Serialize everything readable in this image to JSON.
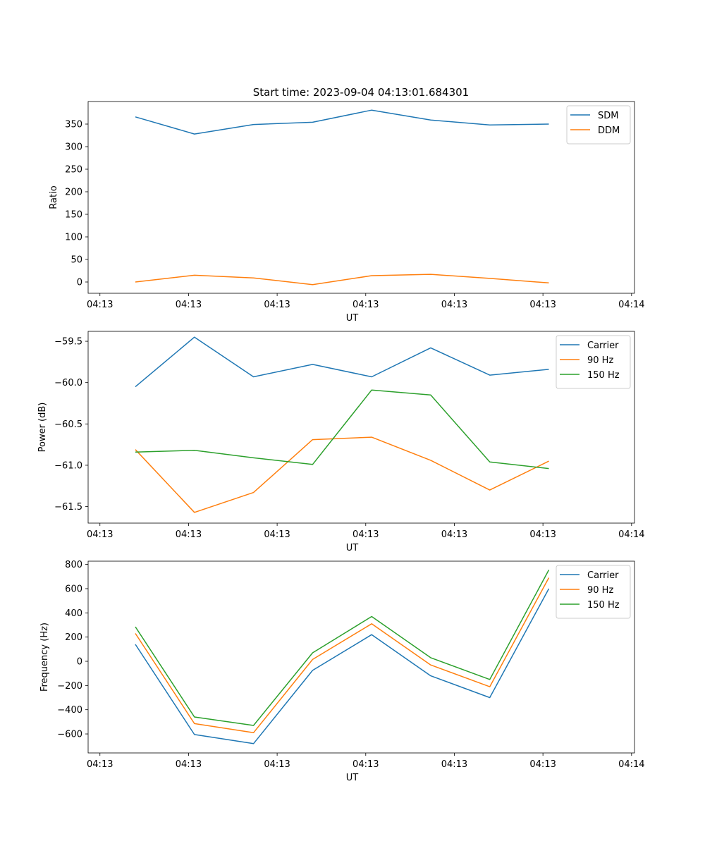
{
  "figure": {
    "title": "Start time: 2023-09-04 04:13:01.684301"
  },
  "chart_data": [
    {
      "type": "line",
      "title": "Start time: 2023-09-04 04:13:01.684301",
      "xlabel": "UT",
      "ylabel": "Ratio",
      "x": [
        1,
        2,
        3,
        4,
        5,
        6,
        7,
        8
      ],
      "xlim": [
        0.2,
        9.45
      ],
      "ylim": [
        -25,
        400
      ],
      "xticks": [
        0.4,
        1.9,
        3.4,
        4.9,
        6.4,
        7.9,
        9.4
      ],
      "xtick_labels": [
        "04:13",
        "04:13",
        "04:13",
        "04:13",
        "04:13",
        "04:13",
        "04:14"
      ],
      "yticks": [
        0,
        50,
        100,
        150,
        200,
        250,
        300,
        350
      ],
      "ytick_labels": [
        "0",
        "50",
        "100",
        "150",
        "200",
        "250",
        "300",
        "350"
      ],
      "legend_position": "top-right",
      "series": [
        {
          "name": "SDM",
          "color": "#1f77b4",
          "values": [
            366,
            328,
            349,
            354,
            381,
            359,
            348,
            350
          ]
        },
        {
          "name": "DDM",
          "color": "#ff7f0e",
          "values": [
            0,
            15,
            9,
            -6,
            14,
            17,
            8,
            -2
          ]
        }
      ]
    },
    {
      "type": "line",
      "title": "",
      "xlabel": "UT",
      "ylabel": "Power (dB)",
      "x": [
        1,
        2,
        3,
        4,
        5,
        6,
        7,
        8
      ],
      "xlim": [
        0.2,
        9.45
      ],
      "ylim": [
        -61.7,
        -59.38
      ],
      "xticks": [
        0.4,
        1.9,
        3.4,
        4.9,
        6.4,
        7.9,
        9.4
      ],
      "xtick_labels": [
        "04:13",
        "04:13",
        "04:13",
        "04:13",
        "04:13",
        "04:13",
        "04:14"
      ],
      "yticks": [
        -61.5,
        -61.0,
        -60.5,
        -60.0,
        -59.5
      ],
      "ytick_labels": [
        "−61.5",
        "−61.0",
        "−60.5",
        "−60.0",
        "−59.5"
      ],
      "legend_position": "top-right",
      "series": [
        {
          "name": "Carrier",
          "color": "#1f77b4",
          "values": [
            -60.05,
            -59.45,
            -59.93,
            -59.78,
            -59.93,
            -59.58,
            -59.91,
            -59.84
          ]
        },
        {
          "name": "90 Hz",
          "color": "#ff7f0e",
          "values": [
            -60.81,
            -61.57,
            -61.33,
            -60.69,
            -60.66,
            -60.94,
            -61.3,
            -60.95
          ]
        },
        {
          "name": "150 Hz",
          "color": "#2ca02c",
          "values": [
            -60.84,
            -60.82,
            -60.91,
            -60.99,
            -60.09,
            -60.15,
            -60.96,
            -61.04
          ]
        }
      ]
    },
    {
      "type": "line",
      "title": "",
      "xlabel": "UT",
      "ylabel": "Frequency (Hz)",
      "x": [
        1,
        2,
        3,
        4,
        5,
        6,
        7,
        8
      ],
      "xlim": [
        0.2,
        9.45
      ],
      "ylim": [
        -757,
        827
      ],
      "xticks": [
        0.4,
        1.9,
        3.4,
        4.9,
        6.4,
        7.9,
        9.4
      ],
      "xtick_labels": [
        "04:13",
        "04:13",
        "04:13",
        "04:13",
        "04:13",
        "04:13",
        "04:14"
      ],
      "yticks": [
        -600,
        -400,
        -200,
        0,
        200,
        400,
        600,
        800
      ],
      "ytick_labels": [
        "−600",
        "−400",
        "−200",
        "0",
        "200",
        "400",
        "600",
        "800"
      ],
      "legend_position": "top-right",
      "series": [
        {
          "name": "Carrier",
          "color": "#1f77b4",
          "values": [
            140,
            -605,
            -680,
            -75,
            220,
            -120,
            -300,
            600
          ]
        },
        {
          "name": "90 Hz",
          "color": "#ff7f0e",
          "values": [
            230,
            -515,
            -590,
            15,
            310,
            -30,
            -210,
            690
          ]
        },
        {
          "name": "150 Hz",
          "color": "#2ca02c",
          "values": [
            285,
            -460,
            -530,
            70,
            370,
            30,
            -150,
            755
          ]
        }
      ]
    }
  ]
}
